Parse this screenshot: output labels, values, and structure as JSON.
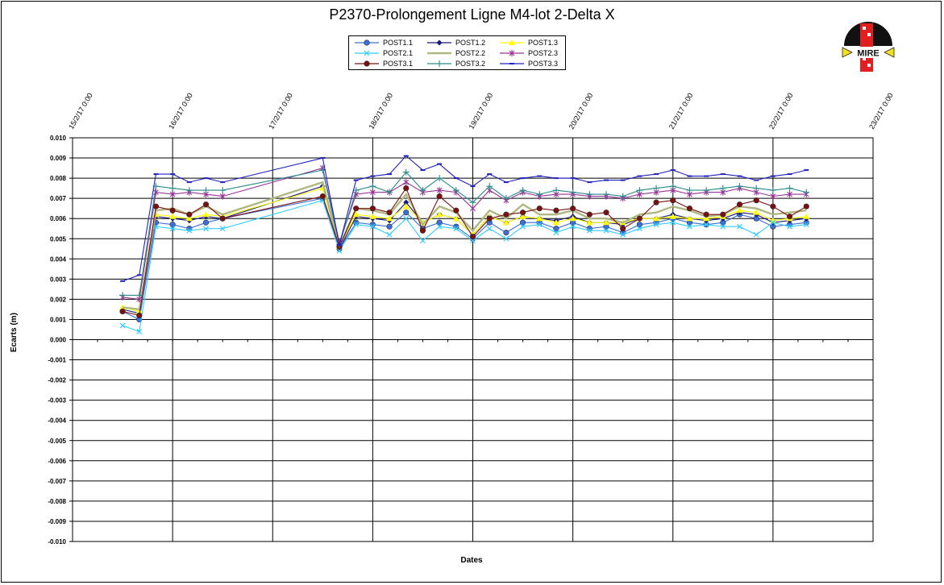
{
  "chart_data": {
    "type": "line",
    "title": "P2370-Prolongement  Ligne  M4-lot  2-Delta  X",
    "xlabel": "Dates",
    "ylabel": "Ecarts (m)",
    "ylim": [
      -0.01,
      0.01
    ],
    "xlim": [
      "15/2/17 0:00",
      "23/2/17 0:00"
    ],
    "yticks": [
      "0.010",
      "0.009",
      "0.008",
      "0.007",
      "0.006",
      "0.005",
      "0.004",
      "0.003",
      "0.002",
      "0.001",
      "0.000",
      "-0.001",
      "-0.002",
      "-0.003",
      "-0.004",
      "-0.005",
      "-0.006",
      "-0.007",
      "-0.008",
      "-0.009",
      "-0.010"
    ],
    "xticks": [
      "15/2/17 0:00",
      "16/2/17 0:00",
      "17/2/17 0:00",
      "18/2/17 0:00",
      "19/2/17 0:00",
      "20/2/17 0:00",
      "21/2/17 0:00",
      "22/2/17 0:00",
      "23/2/17 0:00"
    ],
    "grid": true,
    "legend_position": "top-center",
    "x": [
      "15/2/17 12:00",
      "15/2/17 16:00",
      "15/2/17 20:00",
      "16/2/17 0:00",
      "16/2/17 4:00",
      "16/2/17 8:00",
      "16/2/17 12:00",
      "17/2/17 12:00",
      "17/2/17 16:00",
      "17/2/17 20:00",
      "18/2/17 0:00",
      "18/2/17 4:00",
      "18/2/17 8:00",
      "18/2/17 12:00",
      "18/2/17 16:00",
      "18/2/17 20:00",
      "19/2/17 0:00",
      "19/2/17 4:00",
      "19/2/17 8:00",
      "19/2/17 12:00",
      "19/2/17 16:00",
      "19/2/17 20:00",
      "20/2/17 0:00",
      "20/2/17 4:00",
      "20/2/17 8:00",
      "20/2/17 12:00",
      "20/2/17 16:00",
      "20/2/17 20:00",
      "21/2/17 0:00",
      "21/2/17 4:00",
      "21/2/17 8:00",
      "21/2/17 12:00",
      "21/2/17 16:00",
      "21/2/17 20:00",
      "22/2/17 0:00",
      "22/2/17 4:00",
      "22/2/17 8:00"
    ],
    "series": [
      {
        "name": "POST1.1",
        "color": "#3b6fd8",
        "marker": "circle",
        "values": [
          0.0014,
          0.001,
          0.0058,
          0.0057,
          0.0055,
          0.0058,
          0.006,
          0.007,
          0.0045,
          0.0058,
          0.0057,
          0.0056,
          0.0063,
          0.0055,
          0.0058,
          0.0056,
          0.005,
          0.0058,
          0.0053,
          0.0058,
          0.0058,
          0.0055,
          0.0058,
          0.0055,
          0.0056,
          0.0053,
          0.0057,
          0.0058,
          0.006,
          0.0058,
          0.0057,
          0.0058,
          0.0062,
          0.006,
          0.0056,
          0.0057,
          0.0058
        ]
      },
      {
        "name": "POST1.2",
        "color": "#1a1a7a",
        "marker": "diamond",
        "values": [
          0.0015,
          0.0013,
          0.0061,
          0.006,
          0.0059,
          0.0061,
          0.006,
          0.0076,
          0.0045,
          0.0061,
          0.006,
          0.0059,
          0.0068,
          0.0058,
          0.0062,
          0.006,
          0.0052,
          0.0061,
          0.0058,
          0.0061,
          0.006,
          0.0059,
          0.0061,
          0.0058,
          0.0058,
          0.0057,
          0.006,
          0.006,
          0.0062,
          0.006,
          0.0059,
          0.006,
          0.0063,
          0.0062,
          0.0058,
          0.0059,
          0.006
        ]
      },
      {
        "name": "POST1.3",
        "color": "#ffff00",
        "marker": "triangle",
        "values": [
          0.0016,
          0.0014,
          0.0062,
          0.0061,
          0.006,
          0.0062,
          0.0061,
          0.0075,
          0.0046,
          0.0062,
          0.0061,
          0.006,
          0.0066,
          0.0058,
          0.0062,
          0.006,
          0.0052,
          0.0061,
          0.0058,
          0.0061,
          0.006,
          0.0058,
          0.006,
          0.0058,
          0.0058,
          0.0058,
          0.006,
          0.006,
          0.0061,
          0.006,
          0.006,
          0.0061,
          0.0064,
          0.0063,
          0.0059,
          0.006,
          0.0061
        ]
      },
      {
        "name": "POST2.1",
        "color": "#33ccff",
        "marker": "x",
        "values": [
          0.0007,
          0.0004,
          0.0056,
          0.0055,
          0.0054,
          0.0055,
          0.0055,
          0.0069,
          0.0044,
          0.0057,
          0.0056,
          0.0052,
          0.006,
          0.0049,
          0.0056,
          0.0055,
          0.0049,
          0.0055,
          0.005,
          0.0056,
          0.0057,
          0.0053,
          0.0056,
          0.0054,
          0.0054,
          0.0052,
          0.0055,
          0.0057,
          0.0058,
          0.0056,
          0.0057,
          0.0056,
          0.0056,
          0.0052,
          0.0058,
          0.0056,
          0.0057
        ]
      },
      {
        "name": "POST2.2",
        "color": "#b0b882",
        "marker": "none",
        "values": [
          0.0016,
          0.0015,
          0.0064,
          0.0065,
          0.0062,
          0.0066,
          0.0062,
          0.0078,
          0.0046,
          0.0065,
          0.0064,
          0.0062,
          0.0072,
          0.0057,
          0.0066,
          0.0063,
          0.0054,
          0.0064,
          0.006,
          0.0067,
          0.0062,
          0.0062,
          0.0064,
          0.006,
          0.006,
          0.0058,
          0.0062,
          0.0063,
          0.0066,
          0.0064,
          0.0061,
          0.0062,
          0.0066,
          0.0065,
          0.0062,
          0.0063,
          0.0064
        ]
      },
      {
        "name": "POST2.3",
        "color": "#993399",
        "marker": "asterisk",
        "values": [
          0.0021,
          0.002,
          0.0073,
          0.0072,
          0.0073,
          0.0072,
          0.0071,
          0.0085,
          0.0048,
          0.0072,
          0.0073,
          0.0073,
          0.0078,
          0.0073,
          0.0074,
          0.0073,
          0.0065,
          0.0074,
          0.0069,
          0.0073,
          0.0071,
          0.0072,
          0.0072,
          0.0071,
          0.0071,
          0.007,
          0.0072,
          0.0073,
          0.0074,
          0.0072,
          0.0073,
          0.0073,
          0.0075,
          0.0073,
          0.0071,
          0.0072,
          0.0072
        ]
      },
      {
        "name": "POST3.1",
        "color": "#7a1010",
        "marker": "circle",
        "values": [
          0.0014,
          0.0012,
          0.0066,
          0.0064,
          0.0062,
          0.0067,
          0.006,
          0.0071,
          0.0046,
          0.0065,
          0.0065,
          0.0063,
          0.0075,
          0.0054,
          0.0071,
          0.0064,
          0.0051,
          0.006,
          0.0062,
          0.0063,
          0.0065,
          0.0064,
          0.0065,
          0.0062,
          0.0063,
          0.0055,
          0.006,
          0.0068,
          0.0069,
          0.0065,
          0.0062,
          0.0062,
          0.0067,
          0.0069,
          0.0066,
          0.0061,
          0.0066
        ]
      },
      {
        "name": "POST3.2",
        "color": "#2a8a8a",
        "marker": "plus",
        "values": [
          0.0022,
          0.0022,
          0.0076,
          0.0075,
          0.0074,
          0.0074,
          0.0074,
          0.0084,
          0.0047,
          0.0074,
          0.0076,
          0.0073,
          0.0083,
          0.0074,
          0.008,
          0.0074,
          0.0068,
          0.0076,
          0.007,
          0.0074,
          0.0072,
          0.0074,
          0.0073,
          0.0072,
          0.0072,
          0.0071,
          0.0074,
          0.0075,
          0.0076,
          0.0074,
          0.0074,
          0.0075,
          0.0076,
          0.0075,
          0.0074,
          0.0075,
          0.0073
        ]
      },
      {
        "name": "POST3.3",
        "color": "#2020c0",
        "marker": "dash",
        "values": [
          0.0029,
          0.0032,
          0.0082,
          0.0082,
          0.0078,
          0.008,
          0.0078,
          0.009,
          0.0047,
          0.0079,
          0.0081,
          0.0082,
          0.0091,
          0.0084,
          0.0087,
          0.008,
          0.0076,
          0.0082,
          0.0078,
          0.008,
          0.0081,
          0.008,
          0.008,
          0.0078,
          0.0079,
          0.0079,
          0.0081,
          0.0082,
          0.0084,
          0.0081,
          0.0081,
          0.0082,
          0.0081,
          0.0079,
          0.0081,
          0.0082,
          0.0084
        ]
      }
    ]
  },
  "logo": {
    "text": "MIRE"
  }
}
